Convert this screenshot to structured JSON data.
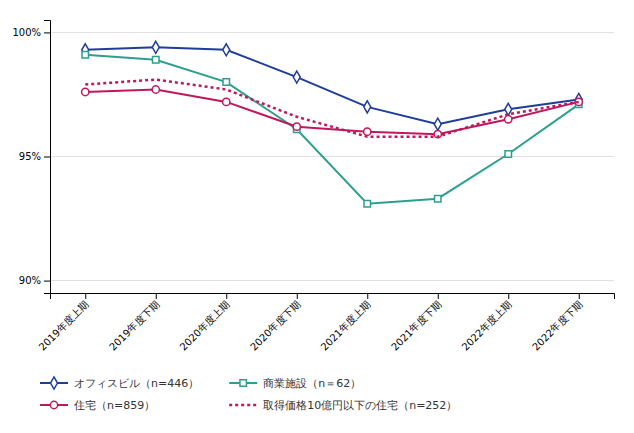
{
  "chart_data": {
    "type": "line",
    "categories": [
      "2019年度上期",
      "2019年度下期",
      "2020年度上期",
      "2020年度下期",
      "2021年度上期",
      "2021年度下期",
      "2022年度上期",
      "2022年度下期"
    ],
    "series": [
      {
        "name": "オフィスビル（n=446）",
        "color": "#1f3d99",
        "marker": "diamond",
        "line_style": "solid",
        "values": [
          99.3,
          99.4,
          99.3,
          98.2,
          97.0,
          96.3,
          96.9,
          97.3
        ]
      },
      {
        "name": "商業施設（n＝62）",
        "color": "#2e9e8e",
        "marker": "square",
        "line_style": "solid",
        "values": [
          99.1,
          98.9,
          98.0,
          96.1,
          93.1,
          93.3,
          95.1,
          97.1
        ]
      },
      {
        "name": "住宅（n=859）",
        "color": "#c0175d",
        "marker": "circle",
        "line_style": "solid",
        "values": [
          97.6,
          97.7,
          97.2,
          96.2,
          96.0,
          95.9,
          96.5,
          97.2
        ]
      },
      {
        "name": "取得価格10億円以下の住宅（n=252）",
        "color": "#c0175d",
        "marker": "none",
        "line_style": "dotted",
        "values": [
          97.9,
          98.1,
          97.7,
          96.6,
          95.8,
          95.8,
          96.7,
          97.2
        ]
      }
    ],
    "ylim": [
      89.5,
      100.5
    ],
    "yticks": [
      {
        "value": 90,
        "label": "90%"
      },
      {
        "value": 95,
        "label": "95%"
      },
      {
        "value": 100,
        "label": "100%"
      }
    ],
    "grid": true,
    "legend": "bottom"
  }
}
